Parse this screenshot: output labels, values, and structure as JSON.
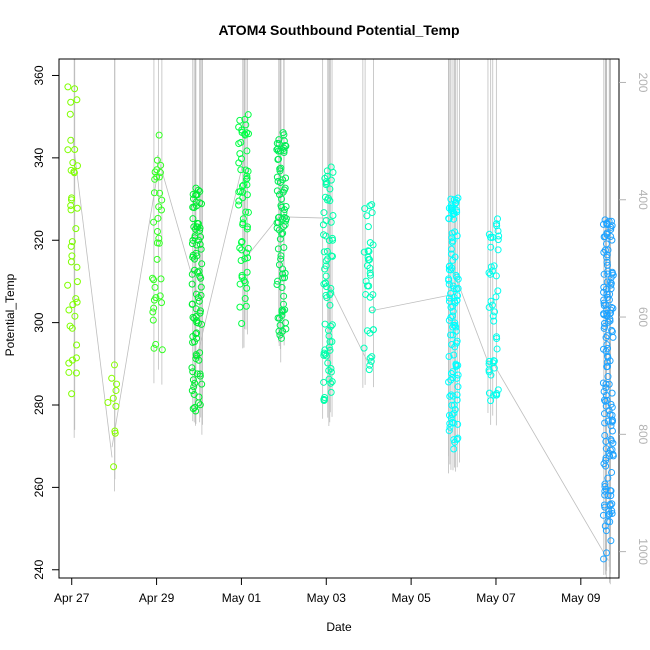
{
  "chart_data": {
    "type": "scatter",
    "title": "ATOM4 Southbound Potential_Temp",
    "xlabel": "Date",
    "ylabel": "Potential_Temp",
    "x_ticks": [
      "Apr 27",
      "Apr 29",
      "May 01",
      "May 03",
      "May 05",
      "May 07",
      "May 09"
    ],
    "x_range_days": [
      -0.3,
      12.9
    ],
    "y_range": [
      238,
      364
    ],
    "y_ticks": [
      240,
      260,
      280,
      300,
      320,
      340,
      360
    ],
    "secondary_axis": {
      "range_reversed": [
        1045,
        160
      ],
      "ticks": [
        200,
        400,
        600,
        800,
        1000
      ],
      "color": "#b3b3b3"
    },
    "grid": false,
    "legend": "none",
    "marker": "open-circle",
    "color_scale": [
      "#80ff00",
      "#00ff40",
      "#00ffbf",
      "#00ffff",
      "#0080ff"
    ],
    "line_color": "#bebebe",
    "clusters": [
      {
        "day": 0.02,
        "y_min": 278,
        "y_max": 359,
        "color": "#7fff00",
        "n": 40
      },
      {
        "day": 0.95,
        "y_min": 264,
        "y_max": 292,
        "color": "#88ff00",
        "n": 10
      },
      {
        "day": 2.02,
        "y_min": 290,
        "y_max": 347,
        "color": "#33ff22",
        "n": 35
      },
      {
        "day": 2.95,
        "y_min": 278,
        "y_max": 333,
        "color": "#00ee33",
        "n": 90
      },
      {
        "day": 4.05,
        "y_min": 299,
        "y_max": 351,
        "color": "#00ff44",
        "n": 60
      },
      {
        "day": 4.95,
        "y_min": 296,
        "y_max": 347,
        "color": "#00ee55",
        "n": 80
      },
      {
        "day": 6.05,
        "y_min": 280,
        "y_max": 338,
        "color": "#00ffaa",
        "n": 70
      },
      {
        "day": 7.0,
        "y_min": 288,
        "y_max": 330,
        "color": "#00ffbb",
        "n": 35
      },
      {
        "day": 9.0,
        "y_min": 269,
        "y_max": 332,
        "color": "#00ffff",
        "n": 110
      },
      {
        "day": 9.95,
        "y_min": 280,
        "y_max": 328,
        "color": "#00ffee",
        "n": 45
      },
      {
        "day": 12.65,
        "y_min": 242,
        "y_max": 325,
        "color": "#1fa3ff",
        "n": 150
      }
    ]
  }
}
